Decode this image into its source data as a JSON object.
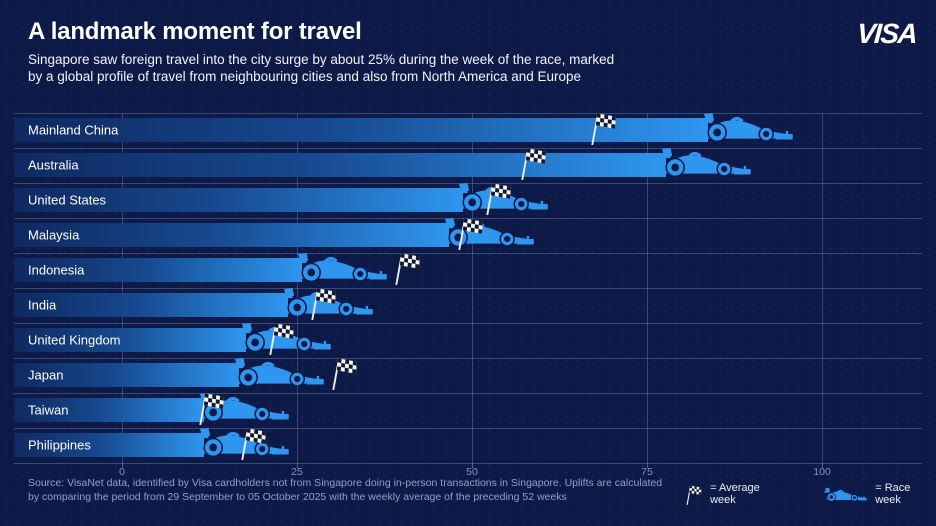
{
  "header": {
    "title": "A landmark moment for travel",
    "subtitle_line1": "Singapore saw foreign travel into the city surge by about 25% during the week of the race, marked",
    "subtitle_line2": "by a global profile of travel from neighbouring cities and also from North America and Europe",
    "brand": "VISA"
  },
  "chart_data": {
    "type": "bar",
    "orientation": "horizontal",
    "title": "Foreign travel into Singapore by origin, race week vs average week",
    "categories": [
      "Mainland China",
      "Australia",
      "United States",
      "Malaysia",
      "Indonesia",
      "India",
      "United Kingdom",
      "Japan",
      "Taiwan",
      "Philippines"
    ],
    "series": [
      {
        "name": "Race week",
        "marker": "f1-car",
        "values": [
          96,
          90,
          61,
          59,
          38,
          36,
          30,
          29,
          24,
          24
        ]
      },
      {
        "name": "Average week",
        "marker": "checkered-flag",
        "values": [
          67,
          57,
          52,
          48,
          39,
          27,
          21,
          30,
          11,
          17
        ]
      }
    ],
    "xlabel": "",
    "ylabel": "",
    "x_axis_ticks": [
      0,
      25,
      50,
      75,
      100
    ],
    "xlim": [
      0,
      110
    ],
    "grid": true,
    "legend_position": "bottom-right",
    "colors": {
      "background": "#0d1947",
      "bar_gradient_start": "#0f2960",
      "bar_gradient_end": "#2e96ef",
      "grid": "#a0b9e1",
      "axis_text": "#8294c0",
      "label_text": "#ffffff"
    }
  },
  "footer": {
    "source_line1": "Source: VisaNet data, identified by Visa cardholders not from Singapore doing in-person transactions in Singapore. Uplifts are calculated",
    "source_line2": "by comparing the period from 29 September to 05 October 2025 with the weekly average of the preceding 52 weeks",
    "legend": [
      {
        "icon": "checkered-flag-icon",
        "label": "= Average week"
      },
      {
        "icon": "f1-car-icon",
        "label": "= Race week"
      }
    ]
  }
}
